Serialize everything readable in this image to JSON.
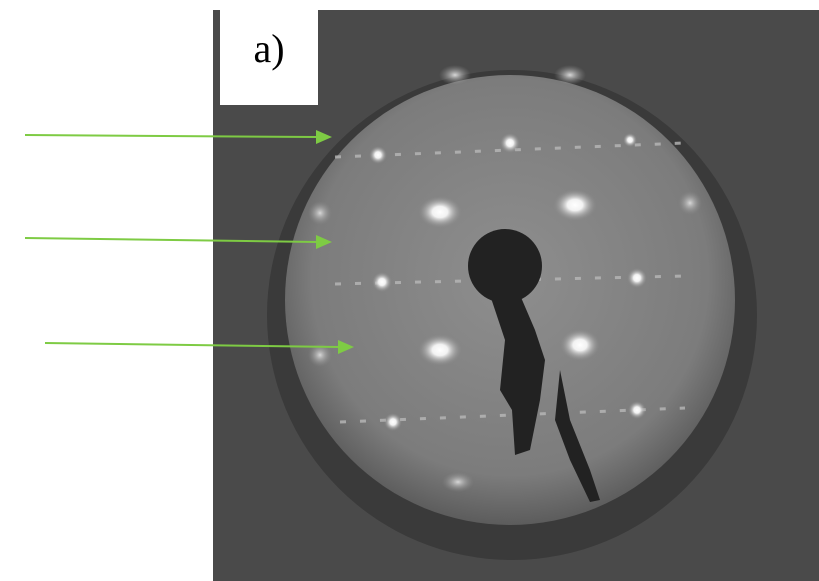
{
  "panel_label": "a)"
}
